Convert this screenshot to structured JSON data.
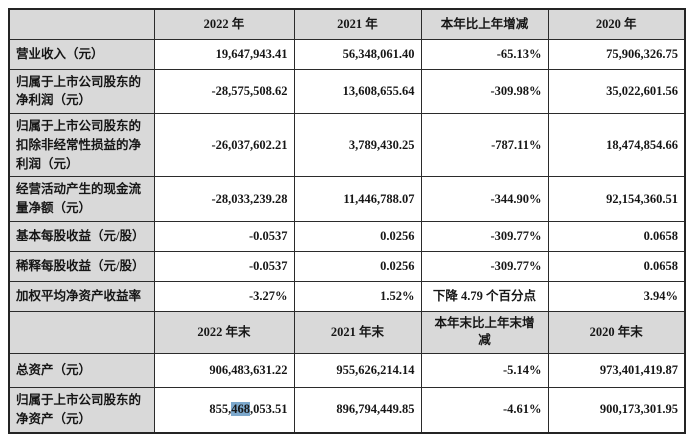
{
  "colors": {
    "header_bg": "#d9d9d9",
    "border": "#2b2b2b",
    "selection_highlight": "#7ca8cc",
    "text": "#161616"
  },
  "table": {
    "section1": {
      "headers": [
        "",
        "2022 年",
        "2021 年",
        "本年比上年增减",
        "2020 年"
      ],
      "rows": [
        {
          "label": "营业收入（元）",
          "y2022": "19,647,943.41",
          "y2021": "56,348,061.40",
          "change": "-65.13%",
          "y2020": "75,906,326.75"
        },
        {
          "label": "归属于上市公司股东的净利润（元）",
          "y2022": "-28,575,508.62",
          "y2021": "13,608,655.64",
          "change": "-309.98%",
          "y2020": "35,022,601.56"
        },
        {
          "label": "归属于上市公司股东的扣除非经常性损益的净利润（元）",
          "y2022": "-26,037,602.21",
          "y2021": "3,789,430.25",
          "change": "-787.11%",
          "y2020": "18,474,854.66"
        },
        {
          "label": "经营活动产生的现金流量净额（元）",
          "y2022": "-28,033,239.28",
          "y2021": "11,446,788.07",
          "change": "-344.90%",
          "y2020": "92,154,360.51"
        },
        {
          "label": "基本每股收益（元/股）",
          "y2022": "-0.0537",
          "y2021": "0.0256",
          "change": "-309.77%",
          "y2020": "0.0658"
        },
        {
          "label": "稀释每股收益（元/股）",
          "y2022": "-0.0537",
          "y2021": "0.0256",
          "change": "-309.77%",
          "y2020": "0.0658"
        },
        {
          "label": "加权平均净资产收益率",
          "y2022": "-3.27%",
          "y2021": "1.52%",
          "change": "下降 4.79 个百分点",
          "y2020": "3.94%"
        }
      ]
    },
    "section2": {
      "headers": [
        "",
        "2022 年末",
        "2021 年末",
        "本年末比上年末增减",
        "2020 年末"
      ],
      "rows": [
        {
          "label": "总资产（元）",
          "y2022": "906,483,631.22",
          "y2021": "955,626,214.14",
          "change": "-5.14%",
          "y2020": "973,401,419.87"
        },
        {
          "label": "归属于上市公司股东的净资产（元）",
          "y2022_prefix": "855,",
          "y2022_highlight": "468",
          "y2022_suffix": ",053.51",
          "y2021": "896,794,449.85",
          "change": "-4.61%",
          "y2020": "900,173,301.95"
        }
      ]
    }
  }
}
